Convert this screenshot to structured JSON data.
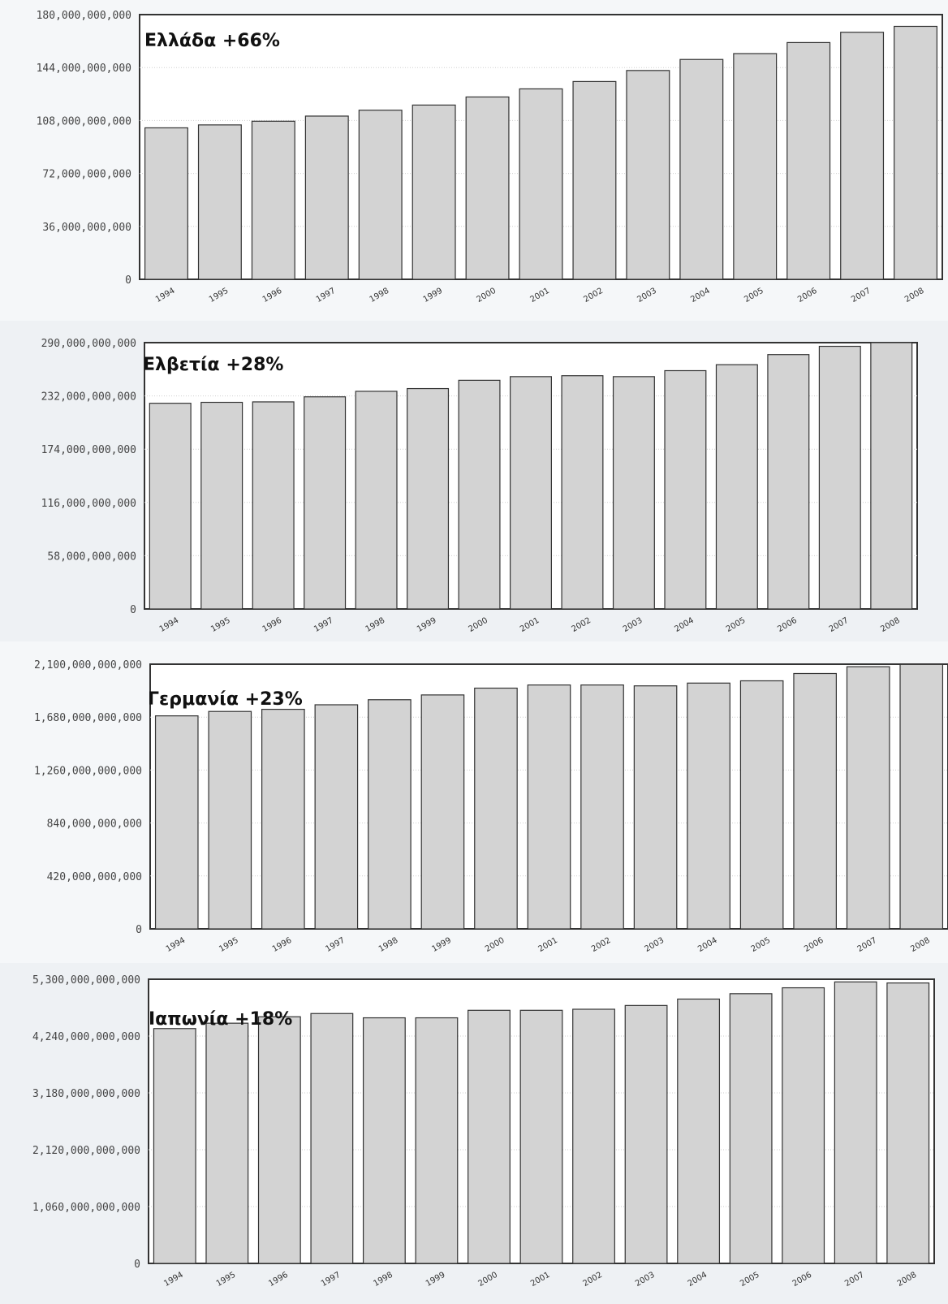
{
  "chart_data": [
    {
      "type": "bar",
      "title": "Ελλάδα +66%",
      "categories": [
        "1994",
        "1995",
        "1996",
        "1997",
        "1998",
        "1999",
        "2000",
        "2001",
        "2002",
        "2003",
        "2004",
        "2005",
        "2006",
        "2007",
        "2008"
      ],
      "values": [
        103000000000,
        105000000000,
        107500000000,
        111000000000,
        115000000000,
        118500000000,
        124000000000,
        129500000000,
        134500000000,
        142000000000,
        149500000000,
        153500000000,
        161000000000,
        168000000000,
        172000000000
      ],
      "yticks": [
        "0",
        "36,000,000,000",
        "72,000,000,000",
        "108,000,000,000",
        "144,000,000,000",
        "180,000,000,000"
      ],
      "ylim": [
        0,
        180000000000
      ],
      "grid": true
    },
    {
      "type": "bar",
      "title": "Ελβετία +28%",
      "categories": [
        "1994",
        "1995",
        "1996",
        "1997",
        "1998",
        "1999",
        "2000",
        "2001",
        "2002",
        "2003",
        "2004",
        "2005",
        "2006",
        "2007",
        "2008"
      ],
      "values": [
        224000000000,
        225000000000,
        225500000000,
        231000000000,
        237000000000,
        240000000000,
        249000000000,
        253000000000,
        254000000000,
        253000000000,
        259500000000,
        266000000000,
        277000000000,
        286000000000,
        290000000000
      ],
      "yticks": [
        "0",
        "58,000,000,000",
        "116,000,000,000",
        "174,000,000,000",
        "232,000,000,000",
        "290,000,000,000"
      ],
      "ylim": [
        0,
        290000000000
      ],
      "grid": true
    },
    {
      "type": "bar",
      "title": "Γερμανία +23%",
      "categories": [
        "1994",
        "1995",
        "1996",
        "1997",
        "1998",
        "1999",
        "2000",
        "2001",
        "2002",
        "2003",
        "2004",
        "2005",
        "2006",
        "2007",
        "2008"
      ],
      "values": [
        1690000000000,
        1725000000000,
        1742000000000,
        1778000000000,
        1818000000000,
        1856000000000,
        1910000000000,
        1935000000000,
        1935000000000,
        1928000000000,
        1950000000000,
        1968000000000,
        2026000000000,
        2080000000000,
        2098000000000
      ],
      "yticks": [
        "0",
        "420,000,000,000",
        "840,000,000,000",
        "1,260,000,000,000",
        "1,680,000,000,000",
        "2,100,000,000,000"
      ],
      "ylim": [
        0,
        2100000000000
      ],
      "grid": true
    },
    {
      "type": "bar",
      "title": "Ιαπωνία +18%",
      "categories": [
        "1994",
        "1995",
        "1996",
        "1997",
        "1998",
        "1999",
        "2000",
        "2001",
        "2002",
        "2003",
        "2004",
        "2005",
        "2006",
        "2007",
        "2008"
      ],
      "values": [
        4380000000000,
        4480000000000,
        4600000000000,
        4660000000000,
        4580000000000,
        4580000000000,
        4720000000000,
        4720000000000,
        4740000000000,
        4810000000000,
        4930000000000,
        5030000000000,
        5140000000000,
        5250000000000,
        5230000000000
      ],
      "yticks": [
        "0",
        "1,060,000,000,000",
        "2,120,000,000,000",
        "3,180,000,000,000",
        "4,240,000,000,000",
        "5,300,000,000,000"
      ],
      "ylim": [
        0,
        5300000000000
      ],
      "grid": true
    }
  ]
}
